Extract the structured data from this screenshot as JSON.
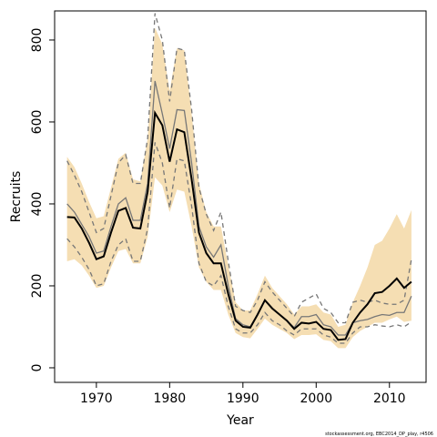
{
  "chart_data": {
    "type": "line",
    "x_label": "Year",
    "y_label": "Recruits",
    "footer": "stockassessment.org, EBC2014_DP_play, r4506",
    "x": [
      1966,
      1967,
      1968,
      1969,
      1970,
      1971,
      1972,
      1973,
      1974,
      1975,
      1976,
      1977,
      1978,
      1979,
      1980,
      1981,
      1982,
      1983,
      1984,
      1985,
      1986,
      1987,
      1988,
      1989,
      1990,
      1991,
      1992,
      1993,
      1994,
      1995,
      1996,
      1997,
      1998,
      1999,
      2000,
      2001,
      2002,
      2003,
      2004,
      2005,
      2006,
      2007,
      2008,
      2009,
      2010,
      2011,
      2012,
      2013
    ],
    "band_color": "#f5deb3",
    "band_upper": [
      515,
      490,
      450,
      405,
      365,
      370,
      440,
      510,
      525,
      460,
      455,
      560,
      830,
      790,
      675,
      780,
      775,
      620,
      450,
      380,
      345,
      345,
      250,
      160,
      140,
      140,
      180,
      225,
      195,
      175,
      155,
      130,
      150,
      150,
      155,
      135,
      130,
      100,
      105,
      160,
      200,
      245,
      300,
      310,
      340,
      375,
      340,
      385
    ],
    "band_lower": [
      260,
      265,
      250,
      225,
      195,
      200,
      245,
      285,
      290,
      255,
      255,
      320,
      465,
      445,
      380,
      435,
      430,
      345,
      245,
      210,
      190,
      190,
      130,
      85,
      75,
      72,
      95,
      120,
      105,
      95,
      85,
      70,
      80,
      80,
      82,
      68,
      65,
      48,
      48,
      75,
      90,
      100,
      110,
      110,
      118,
      125,
      112,
      115
    ],
    "series": [
      {
        "color": "#777777",
        "dashed": true,
        "values": [
          505,
          470,
          430,
          380,
          330,
          340,
          420,
          500,
          520,
          450,
          450,
          560,
          865,
          800,
          650,
          780,
          775,
          630,
          440,
          375,
          335,
          380,
          260,
          150,
          140,
          135,
          165,
          210,
          185,
          165,
          145,
          125,
          160,
          170,
          180,
          145,
          135,
          110,
          110,
          160,
          165,
          160,
          165,
          158,
          155,
          155,
          165,
          265
        ]
      },
      {
        "color": "#777777",
        "dashed": true,
        "values": [
          315,
          295,
          270,
          240,
          200,
          205,
          260,
          300,
          315,
          260,
          260,
          340,
          550,
          500,
          390,
          510,
          505,
          395,
          255,
          210,
          200,
          225,
          150,
          95,
          85,
          85,
          105,
          135,
          115,
          105,
          90,
          80,
          95,
          95,
          95,
          80,
          75,
          60,
          60,
          85,
          100,
          100,
          105,
          102,
          100,
          105,
          100,
          112
        ]
      },
      {
        "color": "#777777",
        "dashed": false,
        "values": [
          400,
          380,
          350,
          320,
          280,
          285,
          345,
          400,
          415,
          360,
          360,
          450,
          700,
          620,
          535,
          630,
          628,
          500,
          345,
          295,
          270,
          300,
          200,
          120,
          105,
          100,
          130,
          165,
          145,
          130,
          115,
          98,
          125,
          125,
          130,
          105,
          100,
          80,
          80,
          110,
          115,
          118,
          125,
          130,
          128,
          135,
          135,
          175
        ]
      },
      {
        "color": "#000000",
        "dashed": false,
        "values": [
          368,
          367,
          340,
          305,
          265,
          272,
          330,
          383,
          390,
          342,
          340,
          430,
          622,
          592,
          503,
          582,
          575,
          460,
          330,
          280,
          255,
          255,
          180,
          115,
          100,
          98,
          130,
          165,
          145,
          130,
          115,
          95,
          110,
          108,
          112,
          95,
          92,
          68,
          70,
          110,
          135,
          155,
          182,
          185,
          200,
          218,
          195,
          210
        ]
      }
    ],
    "xlim": [
      1964.3,
      2015
    ],
    "ylim": [
      -35.6,
      871
    ],
    "xticks": [
      1970,
      1980,
      1990,
      2000,
      2010
    ],
    "yticks": [
      0,
      200,
      400,
      600,
      800
    ]
  }
}
